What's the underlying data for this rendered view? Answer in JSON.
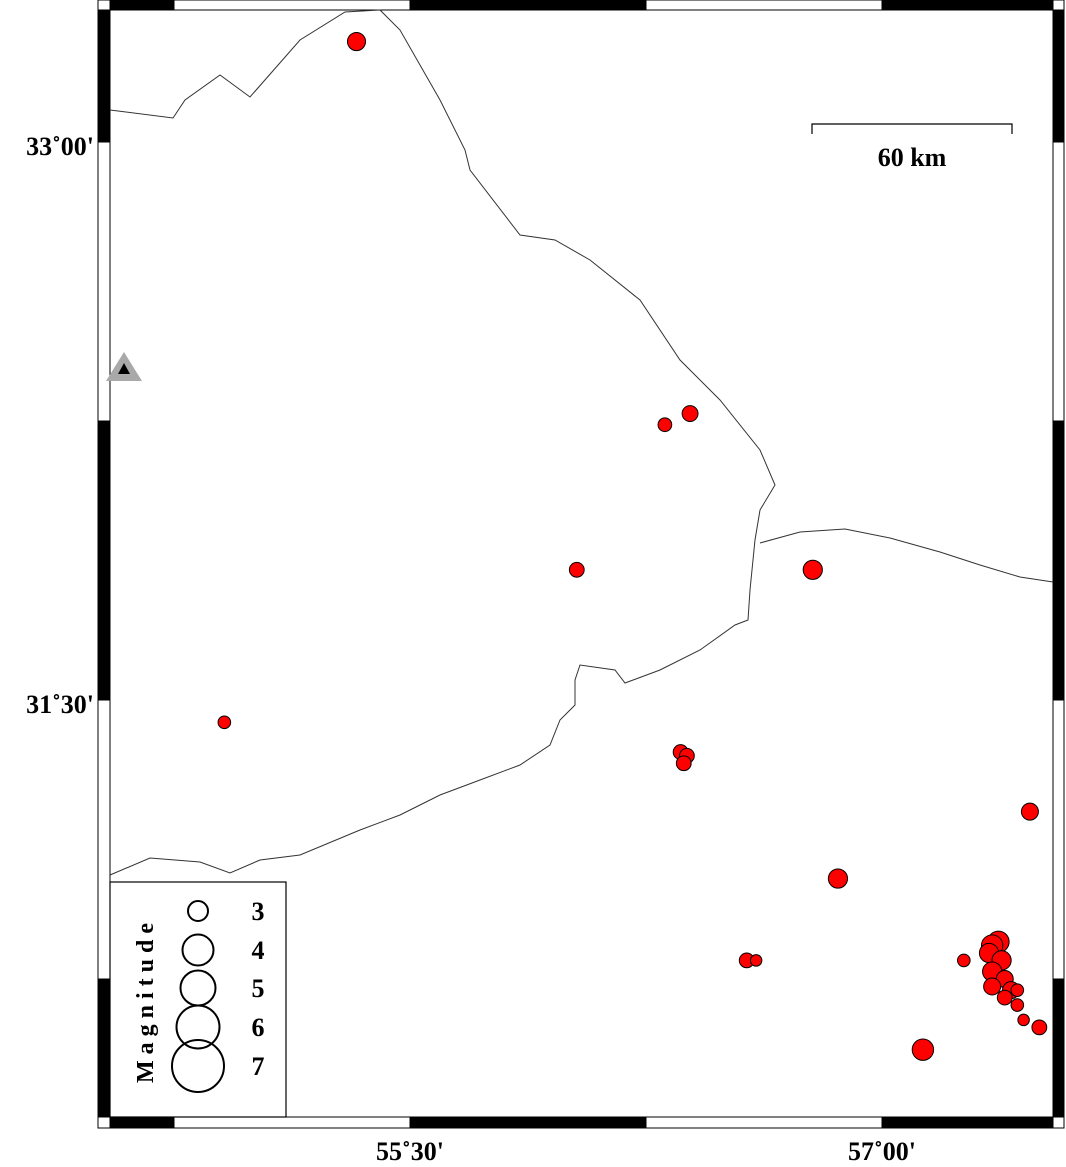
{
  "map": {
    "lon_range": [
      54.5,
      58.05
    ],
    "lat_range": [
      30.3,
      33.35
    ],
    "lon_ticks": [
      {
        "value": 55.5,
        "label": "55˚30'"
      },
      {
        "value": 57.0,
        "label": "57˚00'"
      }
    ],
    "lat_ticks": [
      {
        "value": 33.0,
        "label": "33˚00'"
      },
      {
        "value": 31.5,
        "label": "31˚30'"
      }
    ],
    "frame_interval_deg": 0.75,
    "scale_bar": {
      "label": "60 km",
      "length_km": 60
    },
    "colors": {
      "event_fill": "#ff0000",
      "station_fill": "#000000",
      "station_halo": "#a9a9a9",
      "border": "#333333"
    }
  },
  "station": {
    "icon": "triangle-station-icon",
    "lon": 54.55,
    "lat": 32.39
  },
  "events": [
    {
      "lon": 55.33,
      "lat": 33.27,
      "mag": 3.1
    },
    {
      "lon": 56.31,
      "lat": 32.24,
      "mag": 2.7
    },
    {
      "lon": 56.39,
      "lat": 32.27,
      "mag": 2.9
    },
    {
      "lon": 56.03,
      "lat": 31.85,
      "mag": 2.8
    },
    {
      "lon": 56.78,
      "lat": 31.85,
      "mag": 3.2
    },
    {
      "lon": 54.91,
      "lat": 31.44,
      "mag": 2.6
    },
    {
      "lon": 56.36,
      "lat": 31.36,
      "mag": 2.8
    },
    {
      "lon": 56.38,
      "lat": 31.35,
      "mag": 2.8
    },
    {
      "lon": 56.37,
      "lat": 31.33,
      "mag": 2.8
    },
    {
      "lon": 57.47,
      "lat": 31.2,
      "mag": 3.0
    },
    {
      "lon": 56.86,
      "lat": 31.02,
      "mag": 3.2
    },
    {
      "lon": 56.57,
      "lat": 30.8,
      "mag": 2.8
    },
    {
      "lon": 56.6,
      "lat": 30.8,
      "mag": 2.5
    },
    {
      "lon": 57.13,
      "lat": 30.56,
      "mag": 3.4
    },
    {
      "lon": 57.26,
      "lat": 30.8,
      "mag": 2.6
    },
    {
      "lon": 57.37,
      "lat": 30.85,
      "mag": 3.4
    },
    {
      "lon": 57.35,
      "lat": 30.84,
      "mag": 3.4
    },
    {
      "lon": 57.34,
      "lat": 30.82,
      "mag": 3.2
    },
    {
      "lon": 57.38,
      "lat": 30.8,
      "mag": 3.2
    },
    {
      "lon": 57.35,
      "lat": 30.77,
      "mag": 3.2
    },
    {
      "lon": 57.39,
      "lat": 30.75,
      "mag": 3.0
    },
    {
      "lon": 57.41,
      "lat": 30.72,
      "mag": 3.0
    },
    {
      "lon": 57.35,
      "lat": 30.73,
      "mag": 3.0
    },
    {
      "lon": 57.39,
      "lat": 30.7,
      "mag": 2.8
    },
    {
      "lon": 57.43,
      "lat": 30.72,
      "mag": 2.6
    },
    {
      "lon": 57.43,
      "lat": 30.68,
      "mag": 2.6
    },
    {
      "lon": 57.45,
      "lat": 30.64,
      "mag": 2.5
    },
    {
      "lon": 57.5,
      "lat": 30.62,
      "mag": 2.8
    }
  ],
  "legend": {
    "title": "Magnitude",
    "items": [
      {
        "mag": 3,
        "label": "3"
      },
      {
        "mag": 4,
        "label": "4"
      },
      {
        "mag": 5,
        "label": "5"
      },
      {
        "mag": 6,
        "label": "6"
      },
      {
        "mag": 7,
        "label": "7"
      }
    ]
  }
}
